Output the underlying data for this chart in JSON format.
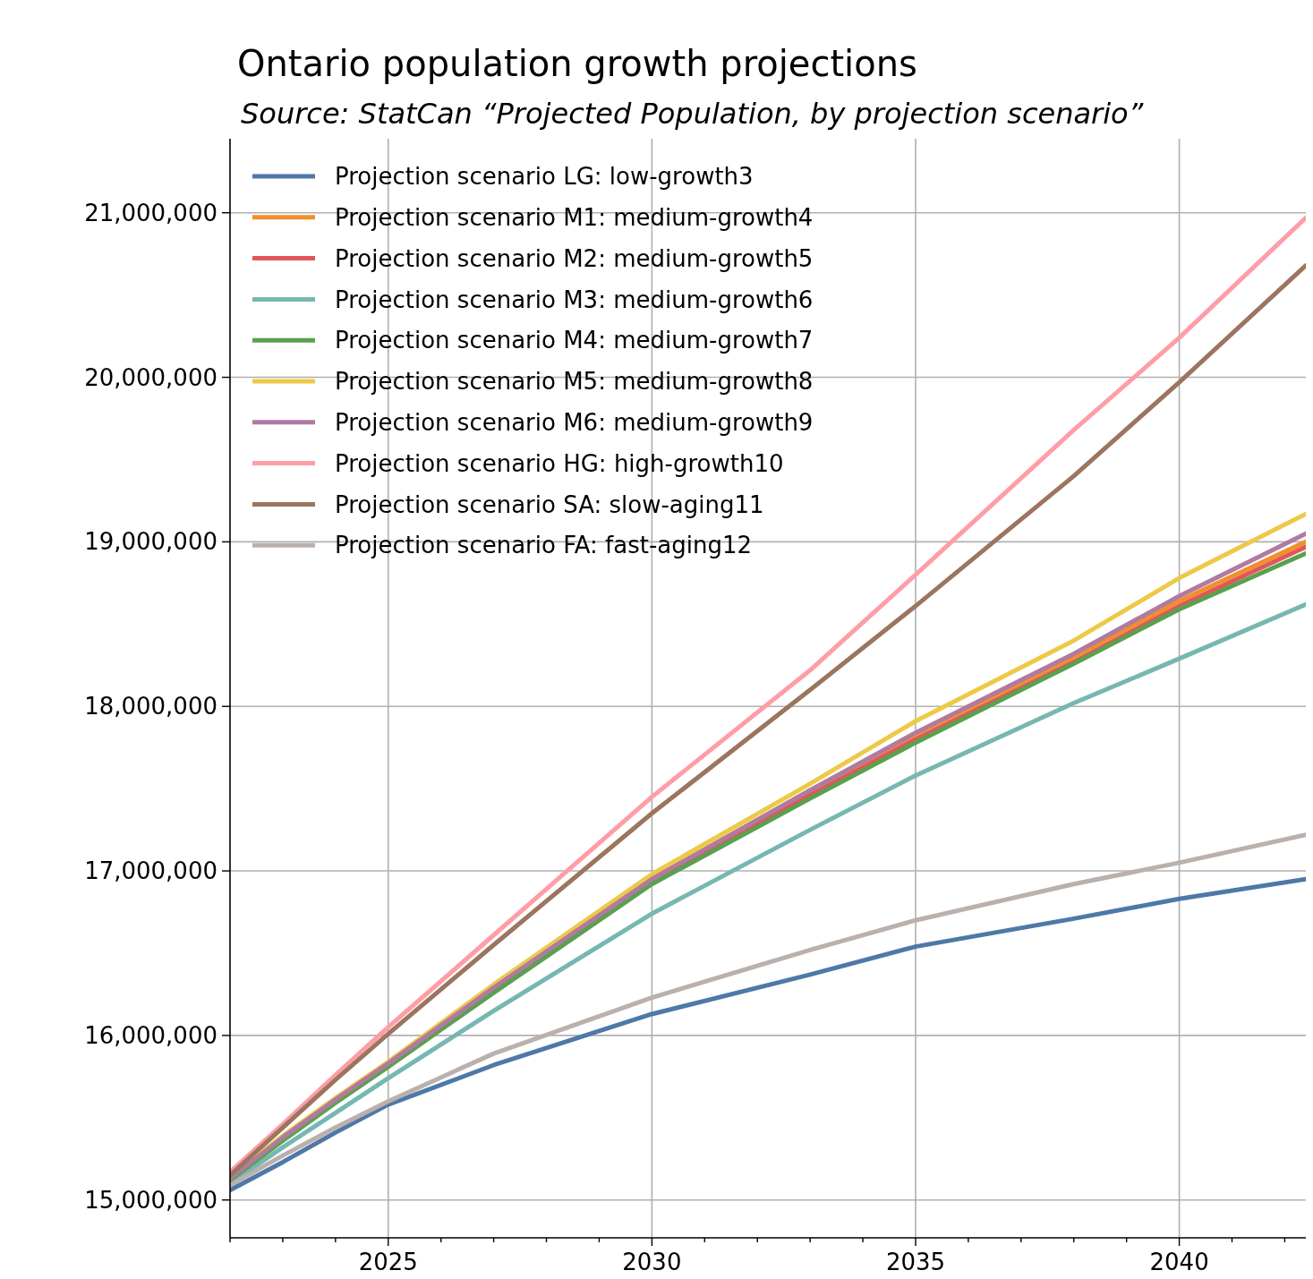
{
  "chart_data": {
    "type": "line",
    "title": "Ontario population growth projections",
    "subtitle": "Source: StatCan “Projected Population, by projection scenario”",
    "x": [
      2022,
      2023,
      2024,
      2025,
      2027,
      2030,
      2033,
      2035,
      2038,
      2040,
      2042.4
    ],
    "xlim": [
      2022,
      2042.4
    ],
    "xticks": [
      {
        "value": 2022,
        "label": null
      },
      {
        "value": 2023,
        "label": null
      },
      {
        "value": 2024,
        "label": null
      },
      2025,
      {
        "value": 2026,
        "label": null
      },
      {
        "value": 2027,
        "label": null
      },
      {
        "value": 2028,
        "label": null
      },
      {
        "value": 2029,
        "label": null
      },
      2030,
      {
        "value": 2031,
        "label": null
      },
      {
        "value": 2032,
        "label": null
      },
      {
        "value": 2033,
        "label": null
      },
      {
        "value": 2034,
        "label": null
      },
      2035,
      {
        "value": 2036,
        "label": null
      },
      {
        "value": 2037,
        "label": null
      },
      {
        "value": 2038,
        "label": null
      },
      {
        "value": 2039,
        "label": null
      },
      2040,
      {
        "value": 2041,
        "label": null
      },
      {
        "value": 2042,
        "label": null
      }
    ],
    "ylim": [
      14770000,
      21450000
    ],
    "yticks": [
      {
        "value": 15000000,
        "label": "15,000,000"
      },
      {
        "value": 16000000,
        "label": "16,000,000"
      },
      {
        "value": 17000000,
        "label": "17,000,000"
      },
      {
        "value": 18000000,
        "label": "18,000,000"
      },
      {
        "value": 19000000,
        "label": "19,000,000"
      },
      {
        "value": 20000000,
        "label": "20,000,000"
      },
      {
        "value": 21000000,
        "label": "21,000,000"
      }
    ],
    "grid": true,
    "legend": "top left",
    "line_style": "solid",
    "marker": "none",
    "series": [
      {
        "name": "Projection scenario LG: low-growth3",
        "color": "#4e79a7",
        "values": [
          15060000,
          15230000,
          15410000,
          15580000,
          15820000,
          16130000,
          16370000,
          16540000,
          16710000,
          16830000,
          16950000
        ]
      },
      {
        "name": "Projection scenario M1: medium-growth4",
        "color": "#f28e2b",
        "values": [
          null,
          null,
          null,
          null,
          16300000,
          16950000,
          17490000,
          17830000,
          18300000,
          18640000,
          19000000
        ]
      },
      {
        "name": "Projection scenario M2: medium-growth5",
        "color": "#e15759",
        "values": [
          null,
          null,
          null,
          null,
          16280000,
          16930000,
          17460000,
          17800000,
          18270000,
          18610000,
          18970000
        ]
      },
      {
        "name": "Projection scenario M3: medium-growth6",
        "color": "#76b7b2",
        "values": [
          15100000,
          15320000,
          15530000,
          15740000,
          16150000,
          16740000,
          17250000,
          17580000,
          18020000,
          18290000,
          18620000
        ]
      },
      {
        "name": "Projection scenario M4: medium-growth7",
        "color": "#59a14f",
        "values": [
          15120000,
          15360000,
          15590000,
          15810000,
          16260000,
          16920000,
          17440000,
          17780000,
          18260000,
          18590000,
          18930000
        ]
      },
      {
        "name": "Projection scenario M5: medium-growth8",
        "color": "#edc948",
        "values": [
          15140000,
          15390000,
          15620000,
          15840000,
          16310000,
          16980000,
          17530000,
          17910000,
          18400000,
          18780000,
          19170000
        ]
      },
      {
        "name": "Projection scenario M6: medium-growth9",
        "color": "#b07aa1",
        "values": [
          15130000,
          15380000,
          15610000,
          15830000,
          16290000,
          16950000,
          17490000,
          17840000,
          18320000,
          18670000,
          19050000
        ]
      },
      {
        "name": "Projection scenario HG: high-growth10",
        "color": "#ff9da7",
        "values": [
          15170000,
          15460000,
          15760000,
          16050000,
          16610000,
          17450000,
          18220000,
          18800000,
          19680000,
          20240000,
          20970000
        ]
      },
      {
        "name": "Projection scenario SA: slow-aging11",
        "color": "#9c755f",
        "values": [
          15150000,
          15440000,
          15730000,
          16010000,
          16550000,
          17350000,
          18100000,
          18610000,
          19400000,
          19970000,
          20680000
        ]
      },
      {
        "name": "Projection scenario FA: fast-aging12",
        "color": "#bab0ac",
        "values": [
          15090000,
          15270000,
          15440000,
          15600000,
          15890000,
          16230000,
          16520000,
          16700000,
          16920000,
          17050000,
          17220000
        ]
      }
    ]
  }
}
